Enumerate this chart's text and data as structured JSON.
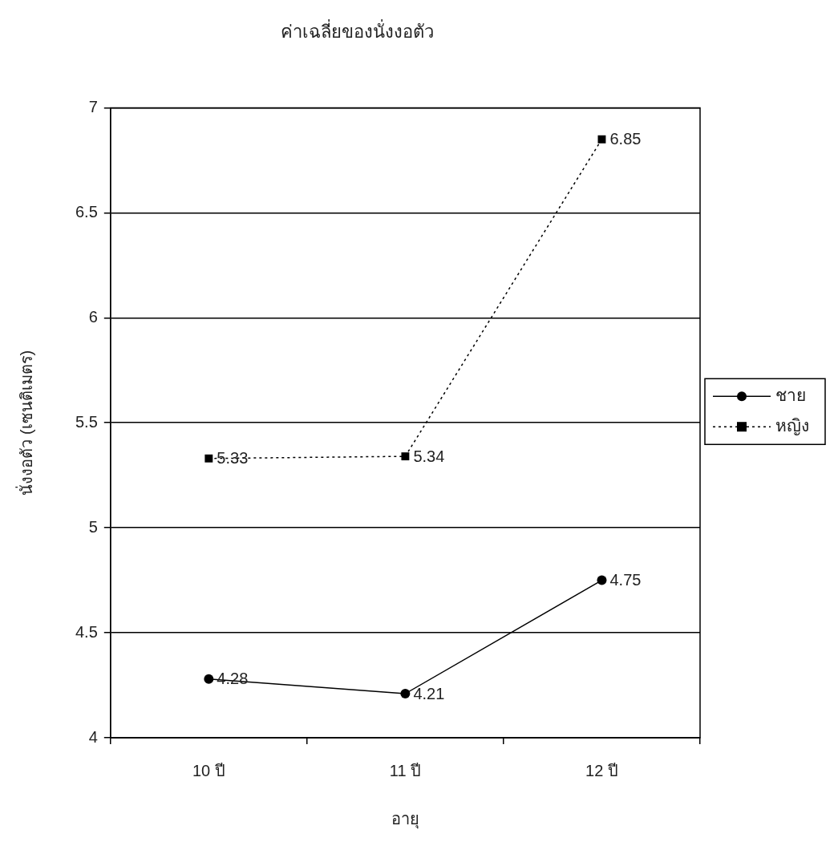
{
  "chart_data": {
    "type": "line",
    "title": "ค่าเฉลี่ยของนั่งงอตัว",
    "xlabel": "อายุ",
    "ylabel": "นั่งงอตัว (เซนติเมตร)",
    "categories": [
      "10 ปี",
      "11 ปี",
      "12 ปี"
    ],
    "series": [
      {
        "name": "ชาย",
        "color": "#000000",
        "values": [
          4.28,
          4.21,
          4.75
        ],
        "marker": "circle",
        "line_style": "solid"
      },
      {
        "name": "หญิง",
        "color": "#000000",
        "values": [
          5.33,
          5.34,
          6.85
        ],
        "marker": "square",
        "line_style": "dotted"
      }
    ],
    "ylim": [
      4,
      7
    ],
    "yticks": [
      4,
      4.5,
      5,
      5.5,
      6,
      6.5,
      7
    ],
    "grid": "y",
    "legend": "right",
    "data_labels": true
  }
}
